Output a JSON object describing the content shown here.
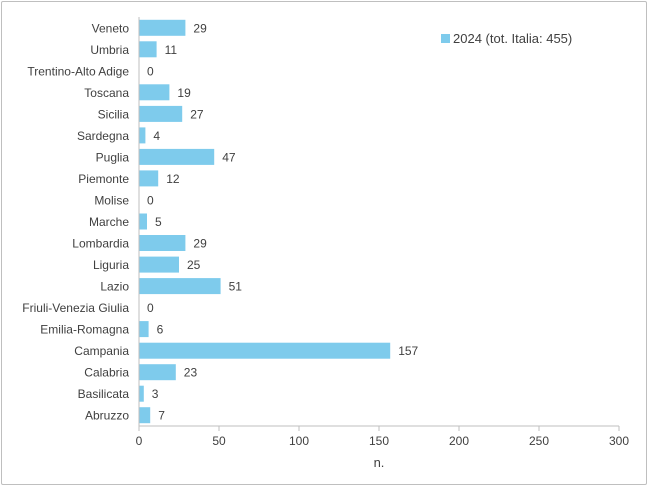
{
  "chart_data": {
    "type": "bar",
    "orientation": "horizontal",
    "categories": [
      "Veneto",
      "Umbria",
      "Trentino-Alto Adige",
      "Toscana",
      "Sicilia",
      "Sardegna",
      "Puglia",
      "Piemonte",
      "Molise",
      "Marche",
      "Lombardia",
      "Liguria",
      "Lazio",
      "Friuli-Venezia Giulia",
      "Emilia-Romagna",
      "Campania",
      "Calabria",
      "Basilicata",
      "Abruzzo"
    ],
    "series": [
      {
        "name": "2024 (tot. Italia: 455)",
        "values": [
          29,
          11,
          0,
          19,
          27,
          4,
          47,
          12,
          0,
          5,
          29,
          25,
          51,
          0,
          6,
          157,
          23,
          3,
          7
        ],
        "color": "#7ecbec"
      }
    ],
    "xlabel": "n.",
    "ylabel": "",
    "xlim": [
      0,
      300
    ],
    "xticks": [
      0,
      50,
      100,
      150,
      200,
      250,
      300
    ],
    "grid": false,
    "legend_position": "top-right",
    "data_labels": true
  }
}
